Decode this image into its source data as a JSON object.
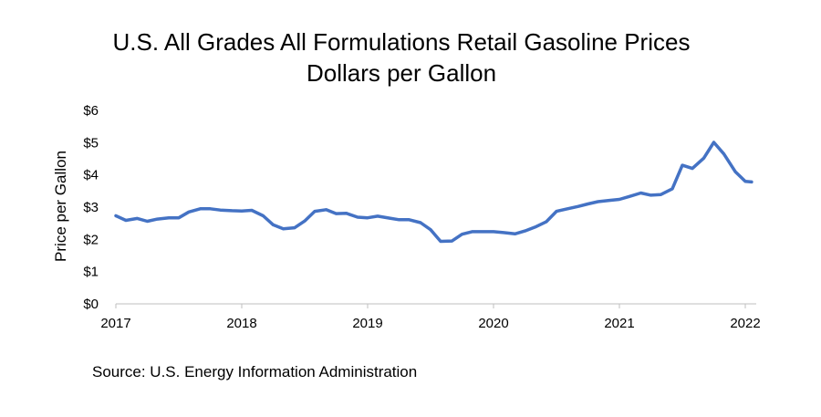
{
  "chart_data": {
    "type": "line",
    "title": "U.S. All Grades All Formulations Retail Gasoline Prices",
    "subtitle": "Dollars per Gallon",
    "xlabel": "",
    "ylabel": "Price per Gallon",
    "ylim": [
      0,
      6
    ],
    "xlim": [
      2017,
      2022
    ],
    "y_ticks": [
      0,
      1,
      2,
      3,
      4,
      5,
      6
    ],
    "y_tick_labels": [
      "$0",
      "$1",
      "$2",
      "$3",
      "$4",
      "$5",
      "$6"
    ],
    "x_ticks": [
      2017,
      2018,
      2019,
      2020,
      2021,
      2022
    ],
    "x_tick_labels": [
      "2017",
      "2018",
      "2019",
      "2020",
      "2021",
      "2022"
    ],
    "grid": false,
    "legend": "none",
    "line_color": "#4472C4",
    "series": [
      {
        "x": [
          2017.0,
          2017.08,
          2017.17,
          2017.25,
          2017.33,
          2017.42,
          2017.5,
          2017.58,
          2017.67,
          2017.75,
          2017.83,
          2017.92,
          2018.0,
          2018.08,
          2018.17,
          2018.25,
          2018.33,
          2018.42,
          2018.5,
          2018.58,
          2018.67,
          2018.75,
          2018.83,
          2018.92,
          2019.0,
          2019.08,
          2019.17,
          2019.25,
          2019.33,
          2019.42,
          2019.5,
          2019.58,
          2019.67,
          2019.75,
          2019.83,
          2019.92,
          2020.0,
          2020.08,
          2020.17,
          2020.25,
          2020.33,
          2020.42,
          2020.5,
          2020.58,
          2020.67,
          2020.75,
          2020.83,
          2020.92,
          2021.0,
          2021.08,
          2021.17,
          2021.25,
          2021.33,
          2021.42,
          2021.5,
          2021.58,
          2021.67,
          2021.75,
          2021.83,
          2021.92,
          2022.0,
          2022.05
        ],
        "values": [
          2.73,
          2.59,
          2.65,
          2.56,
          2.63,
          2.67,
          2.67,
          2.85,
          2.95,
          2.95,
          2.91,
          2.89,
          2.88,
          2.9,
          2.73,
          2.45,
          2.33,
          2.36,
          2.57,
          2.87,
          2.92,
          2.8,
          2.81,
          2.69,
          2.67,
          2.72,
          2.66,
          2.61,
          2.61,
          2.52,
          2.3,
          1.94,
          1.95,
          2.16,
          2.24,
          2.24,
          2.24,
          2.21,
          2.17,
          2.26,
          2.38,
          2.55,
          2.87,
          2.94,
          3.02,
          3.1,
          3.17,
          3.21,
          3.24,
          3.33,
          3.44,
          3.37,
          3.39,
          3.57,
          4.3,
          4.2,
          4.52,
          5.01,
          4.65,
          4.1,
          3.8,
          3.78
        ]
      }
    ]
  },
  "source_text": "Source: U.S. Energy Information Administration"
}
